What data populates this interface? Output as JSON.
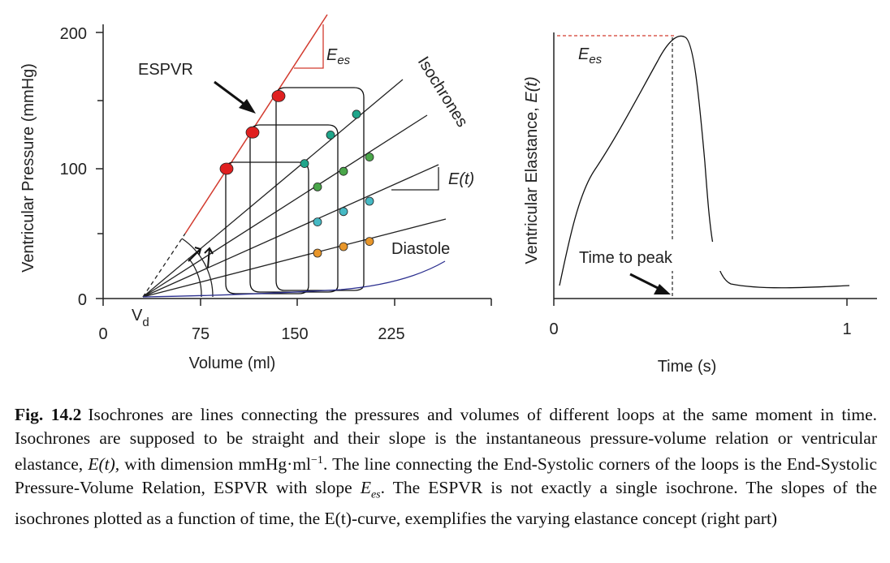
{
  "figure": {
    "left_panel": {
      "ylabel": "Ventricular Pressure (mmHg)",
      "xlabel": "Volume (ml)",
      "y_ticks": [
        "200",
        "100",
        "0"
      ],
      "x_ticks": [
        "0",
        "75",
        "150",
        "225"
      ],
      "vd_label_main": "V",
      "vd_label_sub": "d",
      "espvr_label": "ESPVR",
      "ees_label_main": "E",
      "ees_label_sub": "es",
      "isochrones_label": "Isochrones",
      "et_label": "E(t)",
      "diastole_label": "Diastole"
    },
    "right_panel": {
      "ylabel_prefix": "Ventricular Elastance, ",
      "ylabel_italic": "E(t)",
      "xlabel": "Time (s)",
      "x_ticks": [
        "0",
        "1"
      ],
      "ees_label_main": "E",
      "ees_label_sub": "es",
      "time_to_peak_label": "Time to peak"
    },
    "colors": {
      "espvr": "#d23a2e",
      "diastole": "#2b2f8f",
      "end_systole_dot": "#e02020",
      "isochrone_dot_teal": "#1fa58a",
      "isochrone_dot_green": "#4aa64a",
      "isochrone_dot_cyan": "#46b9c4",
      "isochrone_dot_orange": "#e8962a"
    }
  },
  "chart_data": [
    {
      "type": "line",
      "title": "",
      "xlabel": "Volume (ml)",
      "ylabel": "Ventricular Pressure (mmHg)",
      "xlim": [
        0,
        300
      ],
      "ylim": [
        0,
        215
      ],
      "x_ticks": [
        0,
        75,
        150,
        225
      ],
      "y_ticks": [
        0,
        100,
        200
      ],
      "vd": 30,
      "end_systolic_points": [
        {
          "x": 95,
          "y": 100
        },
        {
          "x": 115,
          "y": 128
        },
        {
          "x": 135,
          "y": 156
        }
      ],
      "loops": [
        {
          "v_es": 95,
          "v_ed": 155,
          "p_es": 100,
          "p_ed": 10
        },
        {
          "v_es": 115,
          "v_ed": 175,
          "p_es": 128,
          "p_ed": 10
        },
        {
          "v_es": 135,
          "v_ed": 195,
          "p_es": 156,
          "p_ed": 10
        }
      ],
      "isochrone_points": [
        {
          "x": 155,
          "y": 104,
          "color": "teal"
        },
        {
          "x": 175,
          "y": 126,
          "color": "teal"
        },
        {
          "x": 195,
          "y": 142,
          "color": "teal"
        },
        {
          "x": 165,
          "y": 86,
          "color": "green"
        },
        {
          "x": 185,
          "y": 98,
          "color": "green"
        },
        {
          "x": 205,
          "y": 109,
          "color": "green"
        },
        {
          "x": 165,
          "y": 59,
          "color": "cyan"
        },
        {
          "x": 185,
          "y": 67,
          "color": "cyan"
        },
        {
          "x": 205,
          "y": 75,
          "color": "cyan"
        },
        {
          "x": 165,
          "y": 35,
          "color": "orange"
        },
        {
          "x": 185,
          "y": 40,
          "color": "orange"
        },
        {
          "x": 205,
          "y": 44,
          "color": "orange"
        }
      ]
    },
    {
      "type": "line",
      "title": "",
      "xlabel": "Time (s)",
      "ylabel": "Ventricular Elastance, E(t)",
      "xlim": [
        0,
        1.1
      ],
      "x_ticks": [
        0,
        1
      ],
      "time_to_peak": 0.4,
      "series": [
        {
          "x": [
            0.02,
            0.05,
            0.1,
            0.15,
            0.2,
            0.25,
            0.3,
            0.34,
            0.38,
            0.41,
            0.44,
            0.46,
            0.48,
            0.5,
            0.52,
            0.55,
            0.6,
            0.7,
            0.8,
            0.9,
            1.0
          ],
          "y": [
            0.05,
            0.25,
            0.42,
            0.5,
            0.6,
            0.7,
            0.8,
            0.88,
            0.96,
            1.0,
            0.98,
            0.85,
            0.6,
            0.3,
            0.12,
            0.05,
            0.035,
            0.03,
            0.03,
            0.03,
            0.04
          ]
        }
      ]
    }
  ],
  "caption": {
    "fig_label": "Fig. 14.2",
    "text_1": "Isochrones are lines connecting the pressures and volumes of different loops at the same moment in time. Isochrones are supposed to be straight and their slope is the instantaneous pressure-volume relation or ventricular elastance, ",
    "text_italic_1": "E(t),",
    "text_2": " with dimension mmHg·ml",
    "text_sup": "−1",
    "text_3": ". The line connecting the End-Systolic corners of the loops is the End-Systolic Pressure-Volume Relation, ESPVR with slope ",
    "text_italic_2_main": "E",
    "text_italic_2_sub": "es",
    "text_4": ". The ESPVR is not exactly a single isochrone. The slopes of the isochrones plotted as a function of time, the E(t)-curve, exemplifies the varying elastance concept (right part)"
  }
}
